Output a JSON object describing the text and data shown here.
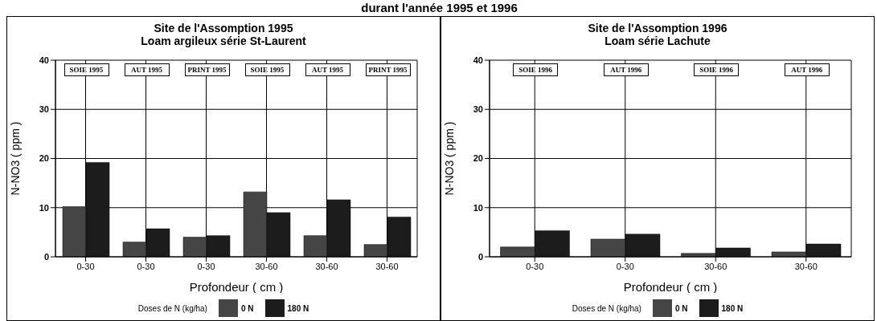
{
  "chart_data": [
    {
      "type": "bar",
      "title": "Site de l'Assomption 1995",
      "subtitle": "Loam argileux série St-Laurent",
      "xlabel": "Profondeur ( cm )",
      "ylabel": "N-NO3 ( ppm )",
      "legend_title": "Doses de N (kg/ha)",
      "categories": [
        "0-30",
        "0-30",
        "0-30",
        "30-60",
        "30-60",
        "30-60"
      ],
      "series": [
        {
          "name": "0 N",
          "color": "#454545",
          "values": [
            10.2,
            3,
            4,
            13.2,
            4.3,
            2.5
          ]
        },
        {
          "name": "180 N",
          "color": "#1c1c1c",
          "values": [
            19.2,
            5.7,
            4.3,
            9,
            11.6,
            8.1
          ]
        }
      ],
      "ylim": [
        0,
        40
      ],
      "yticks": [
        0,
        10,
        20,
        30,
        40
      ],
      "grid": true,
      "legend": "bottom",
      "annotations": [
        "SOIE 1995",
        "AUT 1995",
        "PRINT 1995",
        "SOIE 1995",
        "AUT 1995",
        "PRINT 1995",
        "durant l'année 1995 et 1996"
      ]
    },
    {
      "type": "bar",
      "title": "Site de l'Assomption 1996",
      "subtitle": "Loam série Lachute",
      "xlabel": "Profondeur ( cm )",
      "ylabel": "N-NO3 ( ppm )",
      "legend_title": "Doses de N (kg/ha)",
      "categories": [
        "0-30",
        "0-30",
        "30-60",
        "30-60"
      ],
      "series": [
        {
          "name": "0 N",
          "color": "#454545",
          "values": [
            2,
            3.6,
            0.7,
            1
          ]
        },
        {
          "name": "180 N",
          "color": "#1c1c1c",
          "values": [
            5.3,
            4.6,
            1.8,
            2.6
          ]
        }
      ],
      "ylim": [
        0,
        40
      ],
      "yticks": [
        0,
        10,
        20,
        30,
        40
      ],
      "grid": true,
      "legend": "bottom",
      "annotations": [
        "SOIE 1996",
        "AUT 1996",
        "SOIE 1996",
        "AUT 1996"
      ]
    }
  ]
}
